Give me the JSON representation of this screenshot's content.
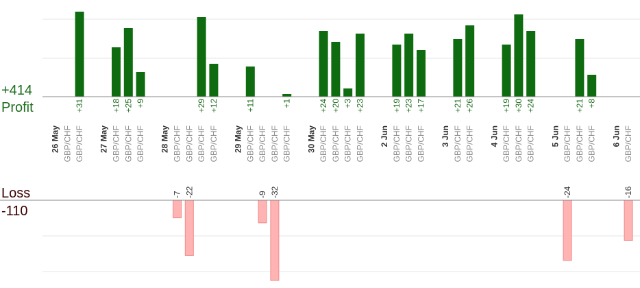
{
  "summary": {
    "profit_total": "+414",
    "profit_label": "Profit",
    "loss_label": "Loss",
    "loss_total": "-110"
  },
  "colors": {
    "profit_bar": "#0f6b0f",
    "profit_text": "#1f6e1f",
    "loss_bar": "#ffb3b3",
    "loss_bar_stroke": "#f08a8a",
    "loss_text": "#3a0000",
    "axis": "#888888",
    "grid": "#e6e6e6",
    "symbol_text": "#8a8a8a",
    "date_text": "#333333"
  },
  "chart_data": {
    "type": "bar",
    "profit_axis_max": 42,
    "loss_axis_max": 35,
    "columns": [
      {
        "kind": "date",
        "label": "26 May"
      },
      {
        "kind": "trade",
        "label": "GBP/CHF",
        "value": null
      },
      {
        "kind": "trade",
        "label": "GBP/CHF",
        "value": 31
      },
      {
        "kind": "gap"
      },
      {
        "kind": "date",
        "label": "27 May"
      },
      {
        "kind": "trade",
        "label": "GBP/CHF",
        "value": 18
      },
      {
        "kind": "trade",
        "label": "GBP/CHF",
        "value": 25
      },
      {
        "kind": "trade",
        "label": "GBP/CHF",
        "value": 9
      },
      {
        "kind": "gap"
      },
      {
        "kind": "date",
        "label": "28 May"
      },
      {
        "kind": "trade",
        "label": "GBP/CHF",
        "value": -7
      },
      {
        "kind": "trade",
        "label": "GBP/CHF",
        "value": -22
      },
      {
        "kind": "trade",
        "label": "GBP/CHF",
        "value": 29
      },
      {
        "kind": "trade",
        "label": "GBP/CHF",
        "value": 12
      },
      {
        "kind": "gap"
      },
      {
        "kind": "date",
        "label": "29 May"
      },
      {
        "kind": "trade",
        "label": "GBP/CHF",
        "value": 11
      },
      {
        "kind": "trade",
        "label": "GBP/CHF",
        "value": -9
      },
      {
        "kind": "trade",
        "label": "GBP/CHF",
        "value": -32
      },
      {
        "kind": "trade",
        "label": "GBP/CHF",
        "value": 1
      },
      {
        "kind": "gap"
      },
      {
        "kind": "date",
        "label": "30 May"
      },
      {
        "kind": "trade",
        "label": "GBP/CHF",
        "value": 24
      },
      {
        "kind": "trade",
        "label": "GBP/CHF",
        "value": 20
      },
      {
        "kind": "trade",
        "label": "GBP/CHF",
        "value": 3
      },
      {
        "kind": "trade",
        "label": "GBP/CHF",
        "value": 23
      },
      {
        "kind": "gap"
      },
      {
        "kind": "date",
        "label": "2 Jun"
      },
      {
        "kind": "trade",
        "label": "GBP/CHF",
        "value": 19
      },
      {
        "kind": "trade",
        "label": "GBP/CHF",
        "value": 23
      },
      {
        "kind": "trade",
        "label": "GBP/CHF",
        "value": 17
      },
      {
        "kind": "gap"
      },
      {
        "kind": "date",
        "label": "3 Jun"
      },
      {
        "kind": "trade",
        "label": "GBP/CHF",
        "value": 21
      },
      {
        "kind": "trade",
        "label": "GBP/CHF",
        "value": 26
      },
      {
        "kind": "gap"
      },
      {
        "kind": "date",
        "label": "4 Jun"
      },
      {
        "kind": "trade",
        "label": "GBP/CHF",
        "value": 19
      },
      {
        "kind": "trade",
        "label": "GBP/CHF",
        "value": 30
      },
      {
        "kind": "trade",
        "label": "GBP/CHF",
        "value": 24
      },
      {
        "kind": "gap"
      },
      {
        "kind": "date",
        "label": "5 Jun"
      },
      {
        "kind": "trade",
        "label": "GBP/CHF",
        "value": -24
      },
      {
        "kind": "trade",
        "label": "GBP/CHF",
        "value": 21
      },
      {
        "kind": "trade",
        "label": "GBP/CHF",
        "value": 8
      },
      {
        "kind": "gap"
      },
      {
        "kind": "date",
        "label": "6 Jun"
      },
      {
        "kind": "trade",
        "label": "GBP/CHF",
        "value": -16
      }
    ]
  }
}
